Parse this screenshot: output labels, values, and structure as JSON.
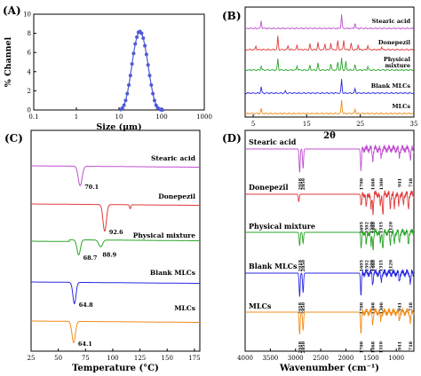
{
  "chart_data": [
    {
      "panel": "(A)",
      "type": "line",
      "xlabel": "Size (μm)",
      "ylabel": "% Channel",
      "xscale": "log",
      "xlim": [
        0.1,
        1000
      ],
      "ylim": [
        0,
        10
      ],
      "x_ticks": [
        "0.1",
        "1",
        "10",
        "100",
        "1000"
      ],
      "y_ticks": [
        "0",
        "2",
        "4",
        "6",
        "8",
        "10"
      ],
      "color": "#4f5bd5",
      "x": [
        11.0,
        12.0,
        13.1,
        14.3,
        15.6,
        17.0,
        18.5,
        20.2,
        22.0,
        24.0,
        26.2,
        28.5,
        31.1,
        33.9,
        37.0,
        40.4,
        44.0,
        48.0,
        52.3,
        57.1,
        62.2,
        67.9,
        74.0,
        80.7,
        88.0,
        96.0,
        104.7
      ],
      "y": [
        0.05,
        0.2,
        0.5,
        1.0,
        1.7,
        2.6,
        3.6,
        4.8,
        5.9,
        6.9,
        7.6,
        8.1,
        8.2,
        8.0,
        7.5,
        6.7,
        5.8,
        4.7,
        3.6,
        2.6,
        1.7,
        1.0,
        0.5,
        0.22,
        0.08,
        0.02,
        0.0
      ]
    },
    {
      "panel": "(B)",
      "type": "line",
      "xlabel": "2θ",
      "xlim": [
        3.5,
        35
      ],
      "x_ticks": [
        "5",
        "15",
        "25",
        "35"
      ],
      "series": [
        {
          "name": "Stearic acid",
          "color": "#c04fd0",
          "peaks": [
            [
              6.5,
              0.55
            ],
            [
              21.5,
              1.0
            ],
            [
              24.0,
              0.35
            ]
          ]
        },
        {
          "name": "Donepezil",
          "color": "#e03a3a",
          "peaks": [
            [
              5.5,
              0.25
            ],
            [
              9.6,
              0.95
            ],
            [
              11.5,
              0.3
            ],
            [
              13.2,
              0.35
            ],
            [
              15.6,
              0.4
            ],
            [
              17.1,
              0.55
            ],
            [
              18.4,
              0.4
            ],
            [
              19.5,
              0.5
            ],
            [
              20.8,
              0.6
            ],
            [
              21.9,
              0.7
            ],
            [
              23.3,
              0.45
            ],
            [
              24.6,
              0.35
            ],
            [
              26.4,
              0.3
            ],
            [
              29.0,
              0.2
            ]
          ]
        },
        {
          "name": "Physical mixture",
          "color": "#2aa52a",
          "peaks": [
            [
              6.5,
              0.3
            ],
            [
              9.6,
              0.8
            ],
            [
              13.2,
              0.3
            ],
            [
              15.6,
              0.35
            ],
            [
              17.1,
              0.5
            ],
            [
              19.5,
              0.45
            ],
            [
              20.8,
              0.55
            ],
            [
              21.5,
              0.85
            ],
            [
              22.3,
              0.6
            ],
            [
              24.0,
              0.35
            ],
            [
              26.4,
              0.25
            ]
          ]
        },
        {
          "name": "Blank MLCs",
          "color": "#2a2ae0",
          "peaks": [
            [
              6.5,
              0.45
            ],
            [
              11.0,
              0.15
            ],
            [
              21.5,
              1.0
            ],
            [
              24.0,
              0.3
            ]
          ]
        },
        {
          "name": "MLCs",
          "color": "#f08c1a",
          "peaks": [
            [
              6.5,
              0.35
            ],
            [
              21.5,
              1.0
            ],
            [
              24.0,
              0.3
            ]
          ]
        }
      ]
    },
    {
      "panel": "(C)",
      "type": "line",
      "xlabel": "Temperature (°C)",
      "xlim": [
        25,
        180
      ],
      "x_ticks": [
        "25",
        "50",
        "75",
        "100",
        "125",
        "150",
        "175"
      ],
      "series": [
        {
          "name": "Stearic acid",
          "color": "#c04fd0",
          "dips": [
            [
              70.1,
              1.0,
              2.5
            ]
          ],
          "label": "70.1"
        },
        {
          "name": "Donepezil",
          "color": "#e03a3a",
          "dips": [
            [
              92.6,
              1.0,
              2.2
            ],
            [
              116,
              0.15,
              0.8
            ]
          ],
          "label": "92.6"
        },
        {
          "name": "Physical mixture",
          "color": "#2aa52a",
          "dips": [
            [
              68.7,
              1.0,
              2.2
            ],
            [
              88.9,
              0.45,
              2.5
            ]
          ],
          "label": "68.7",
          "label2": "88.9"
        },
        {
          "name": "Blank MLCs",
          "color": "#2a2ae0",
          "dips": [
            [
              64.8,
              1.0,
              2.0
            ]
          ],
          "label": "64.8"
        },
        {
          "name": "MLCs",
          "color": "#f08c1a",
          "dips": [
            [
              64.1,
              1.0,
              2.2
            ]
          ],
          "label": "64.1"
        }
      ]
    },
    {
      "panel": "(D)",
      "type": "line",
      "xlabel": "Wavenumber (cm⁻¹)",
      "xlim": [
        4000,
        650
      ],
      "x_ticks": [
        "4000",
        "3500",
        "3000",
        "2500",
        "2000",
        "1500",
        "1000"
      ],
      "series": [
        {
          "name": "Stearic acid",
          "color": "#c04fd0",
          "bands": [
            [
              2918,
              0.9
            ],
            [
              2850,
              0.75
            ],
            [
              1700,
              0.85
            ],
            [
              1468,
              0.4
            ],
            [
              1300,
              0.3
            ],
            [
              941,
              0.3
            ],
            [
              718,
              0.4
            ]
          ],
          "labels": [
            "2918",
            "2850",
            "1700",
            "1468",
            "1300",
            "941",
            "718"
          ]
        },
        {
          "name": "Donepezil",
          "color": "#e03a3a",
          "bands": [
            [
              2935,
              0.3
            ],
            [
              1695,
              0.55
            ],
            [
              1595,
              0.6
            ],
            [
              1500,
              0.65
            ],
            [
              1460,
              0.7
            ],
            [
              1315,
              0.5
            ],
            [
              1265,
              0.8
            ],
            [
              1120,
              0.55
            ],
            [
              1040,
              0.6
            ],
            [
              950,
              0.5
            ],
            [
              860,
              0.45
            ],
            [
              760,
              0.6
            ]
          ],
          "labels": [
            "1695",
            "1592",
            "1500",
            "1460",
            "1315",
            "1120"
          ]
        },
        {
          "name": "Physical mixture",
          "color": "#2aa52a",
          "bands": [
            [
              2918,
              0.55
            ],
            [
              2850,
              0.45
            ],
            [
              1695,
              0.7
            ],
            [
              1595,
              0.55
            ],
            [
              1500,
              0.6
            ],
            [
              1460,
              0.6
            ],
            [
              1315,
              0.45
            ],
            [
              1265,
              0.65
            ],
            [
              1120,
              0.5
            ],
            [
              1040,
              0.5
            ],
            [
              940,
              0.4
            ],
            [
              760,
              0.5
            ]
          ],
          "labels": [
            "2918",
            "2850",
            "1695",
            "1592",
            "1500",
            "1460",
            "1315",
            "1120"
          ]
        },
        {
          "name": "Blank MLCs",
          "color": "#2a2ae0",
          "bands": [
            [
              2918,
              0.9
            ],
            [
              2850,
              0.75
            ],
            [
              1700,
              0.85
            ],
            [
              1468,
              0.4
            ],
            [
              1300,
              0.3
            ],
            [
              941,
              0.3
            ],
            [
              718,
              0.4
            ]
          ],
          "labels": [
            "2918",
            "2850",
            "1700",
            "1468",
            "1300",
            "941",
            "718"
          ]
        },
        {
          "name": "MLCs",
          "color": "#f08c1a",
          "bands": [
            [
              2918,
              0.85
            ],
            [
              2850,
              0.7
            ],
            [
              1700,
              0.8
            ],
            [
              1468,
              0.4
            ],
            [
              1310,
              0.35
            ],
            [
              941,
              0.3
            ],
            [
              718,
              0.4
            ]
          ],
          "labels": [
            "2918",
            "2850",
            "1700",
            "1468",
            "1310",
            "941",
            "718"
          ]
        }
      ]
    }
  ]
}
